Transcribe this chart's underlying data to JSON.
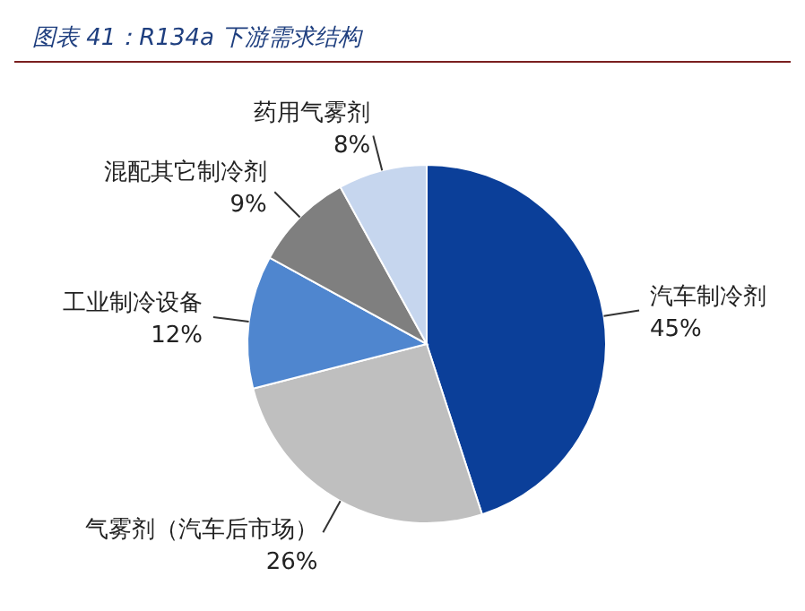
{
  "chart_data": {
    "type": "pie",
    "title": "图表 41：R134a 下游需求结构",
    "categories": [
      "汽车制冷剂",
      "气雾剂（汽车后市场）",
      "工业制冷设备",
      "混配其它制冷剂",
      "药用气雾剂"
    ],
    "values": [
      45,
      26,
      12,
      9,
      8
    ],
    "value_labels": [
      "45%",
      "26%",
      "12%",
      "9%",
      "8%"
    ],
    "colors": [
      "#0b3f99",
      "#bfbfbf",
      "#4f86cf",
      "#7f7f7f",
      "#c6d6ee"
    ],
    "legend": false
  }
}
